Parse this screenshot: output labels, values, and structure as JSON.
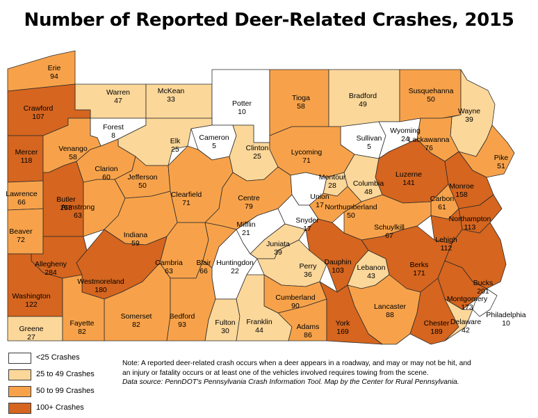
{
  "title": "Number of Reported Deer-Related Crashes, 2015",
  "colors": {
    "lt25": "#ffffff",
    "25to49": "#fbd79a",
    "50to99": "#f7a24a",
    "100plus": "#d5651f",
    "border": "#2b2b2b"
  },
  "legend": [
    {
      "label": "<25 Crashes",
      "color_key": "lt25"
    },
    {
      "label": "25 to 49 Crashes",
      "color_key": "25to49"
    },
    {
      "label": "50 to 99 Crashes",
      "color_key": "50to99"
    },
    {
      "label": "100+ Crashes",
      "color_key": "100plus"
    }
  ],
  "note": {
    "line1": "Note: A reported deer-related crash occurs when a deer appears in a roadway, and may or may not be hit, and",
    "line2": "an injury or fatality occurs or at least one of the vehicles involved requires towing from the scene.",
    "line3": "Data source: PennDOT's Pennsylvania Crash Information Tool. Map by the Center for Rural Pennsylvania."
  },
  "counties": [
    {
      "name": "Erie",
      "value": 94
    },
    {
      "name": "Warren",
      "value": 47
    },
    {
      "name": "McKean",
      "value": 33
    },
    {
      "name": "Potter",
      "value": 10
    },
    {
      "name": "Tioga",
      "value": 58
    },
    {
      "name": "Bradford",
      "value": 49
    },
    {
      "name": "Susquehanna",
      "value": 50
    },
    {
      "name": "Wayne",
      "value": 39
    },
    {
      "name": "Crawford",
      "value": 107
    },
    {
      "name": "Forest",
      "value": 8
    },
    {
      "name": "Elk",
      "value": 25
    },
    {
      "name": "Cameron",
      "value": 5
    },
    {
      "name": "Sullivan",
      "value": 5
    },
    {
      "name": "Wyoming",
      "value": 24
    },
    {
      "name": "Lackawanna",
      "value": 76
    },
    {
      "name": "Pike",
      "value": 51
    },
    {
      "name": "Mercer",
      "value": 118
    },
    {
      "name": "Venango",
      "value": 58
    },
    {
      "name": "Clinton",
      "value": 25
    },
    {
      "name": "Lycoming",
      "value": 71
    },
    {
      "name": "Clarion",
      "value": 60
    },
    {
      "name": "Jefferson",
      "value": 50
    },
    {
      "name": "Luzerne",
      "value": 141
    },
    {
      "name": "Montour",
      "value": 28
    },
    {
      "name": "Columbia",
      "value": 48
    },
    {
      "name": "Monroe",
      "value": 158
    },
    {
      "name": "Lawrence",
      "value": 66
    },
    {
      "name": "Butler",
      "value": 153
    },
    {
      "name": "Clearfield",
      "value": 71
    },
    {
      "name": "Centre",
      "value": 79
    },
    {
      "name": "Union",
      "value": 17
    },
    {
      "name": "Northumberland",
      "value": 50
    },
    {
      "name": "Carbon",
      "value": 61
    },
    {
      "name": "Armstrong",
      "value": 63
    },
    {
      "name": "Snyder",
      "value": 17
    },
    {
      "name": "Northampton",
      "value": 113
    },
    {
      "name": "Beaver",
      "value": 72
    },
    {
      "name": "Indiana",
      "value": 59
    },
    {
      "name": "Schuylkill",
      "value": 67
    },
    {
      "name": "Mifflin",
      "value": 21
    },
    {
      "name": "Juniata",
      "value": 39
    },
    {
      "name": "Lehigh",
      "value": 112
    },
    {
      "name": "Allegheny",
      "value": 284
    },
    {
      "name": "Cambria",
      "value": 63
    },
    {
      "name": "Blair",
      "value": 66
    },
    {
      "name": "Huntingdon",
      "value": 22
    },
    {
      "name": "Perry",
      "value": 36
    },
    {
      "name": "Dauphin",
      "value": 103
    },
    {
      "name": "Lebanon",
      "value": 43
    },
    {
      "name": "Berks",
      "value": 171
    },
    {
      "name": "Bucks",
      "value": 201
    },
    {
      "name": "Washington",
      "value": 122
    },
    {
      "name": "Westmoreland",
      "value": 180
    },
    {
      "name": "Montgomery",
      "value": 173
    },
    {
      "name": "Somerset",
      "value": 82
    },
    {
      "name": "Bedford",
      "value": 93
    },
    {
      "name": "Cumberland",
      "value": 90
    },
    {
      "name": "Lancaster",
      "value": 88
    },
    {
      "name": "Chester",
      "value": 189
    },
    {
      "name": "Philadelphia",
      "value": 10
    },
    {
      "name": "Greene",
      "value": 27
    },
    {
      "name": "Fayette",
      "value": 82
    },
    {
      "name": "Fulton",
      "value": 30
    },
    {
      "name": "Franklin",
      "value": 44
    },
    {
      "name": "Adams",
      "value": 86
    },
    {
      "name": "York",
      "value": 169
    },
    {
      "name": "Delaware",
      "value": 42
    }
  ]
}
